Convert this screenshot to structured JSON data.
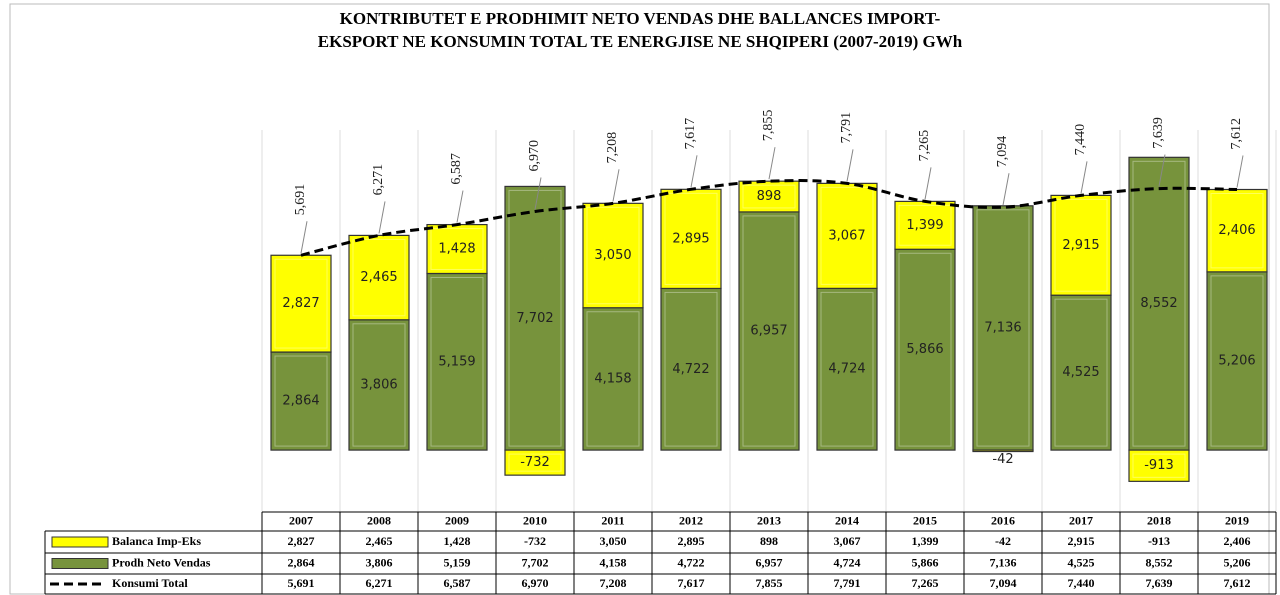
{
  "chart_data": {
    "type": "bar",
    "title": "KONTRIBUTET E PRODHIMIT NETO VENDAS DHE BALLANCES IMPORT-",
    "subtitle": "EKSPORT NE KONSUMIN TOTAL TE ENERGJISE NE SHQIPERI (2007-2019) GWh",
    "categories": [
      "2007",
      "2008",
      "2009",
      "2010",
      "2011",
      "2012",
      "2013",
      "2014",
      "2015",
      "2016",
      "2017",
      "2018",
      "2019"
    ],
    "series": [
      {
        "name": "Balanca Imp-Eks",
        "color": "#ffff00",
        "type": "bar",
        "values": [
          2827,
          2465,
          1428,
          -732,
          3050,
          2895,
          898,
          3067,
          1399,
          -42,
          2915,
          -913,
          2406
        ],
        "value_labels": [
          "2,827",
          "2,465",
          "1,428",
          "-732",
          "3,050",
          "2,895",
          "898",
          "3,067",
          "1,399",
          "-42",
          "2,915",
          "-913",
          "2,406"
        ]
      },
      {
        "name": "Prodh Neto Vendas",
        "color": "#77933c",
        "type": "bar",
        "values": [
          2864,
          3806,
          5159,
          7702,
          4158,
          4722,
          6957,
          4724,
          5866,
          7136,
          4525,
          8552,
          5206
        ],
        "value_labels": [
          "2,864",
          "3,806",
          "5,159",
          "7,702",
          "4,158",
          "4,722",
          "6,957",
          "4,724",
          "5,866",
          "7,136",
          "4,525",
          "8,552",
          "5,206"
        ]
      },
      {
        "name": "Konsumi Total",
        "color": "#000000",
        "type": "line",
        "values": [
          5691,
          6271,
          6587,
          6970,
          7208,
          7617,
          7855,
          7791,
          7265,
          7094,
          7440,
          7639,
          7612
        ],
        "value_labels": [
          "5,691",
          "6,271",
          "6,587",
          "6,970",
          "7,208",
          "7,617",
          "7,855",
          "7,791",
          "7,265",
          "7,094",
          "7,440",
          "7,639",
          "7,612"
        ]
      }
    ],
    "ylim": [
      -1750,
      9350
    ]
  }
}
